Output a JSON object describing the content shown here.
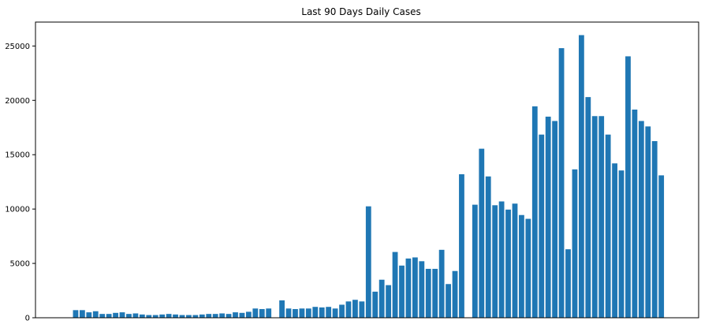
{
  "chart_data": {
    "type": "bar",
    "title": "Last 90 Days Daily Cases",
    "xlabel": "",
    "ylabel": "",
    "ylim": [
      0,
      27200
    ],
    "yticks": [
      0,
      5000,
      10000,
      15000,
      20000,
      25000
    ],
    "grid": false,
    "legend": false,
    "color": "#1f77b4",
    "values": [
      0,
      700,
      700,
      500,
      600,
      350,
      350,
      450,
      500,
      350,
      400,
      300,
      250,
      250,
      300,
      350,
      300,
      250,
      250,
      250,
      300,
      350,
      350,
      400,
      350,
      500,
      450,
      550,
      850,
      800,
      850,
      0,
      1600,
      850,
      800,
      850,
      850,
      1000,
      950,
      1000,
      850,
      1200,
      1500,
      1650,
      1500,
      10250,
      2400,
      3500,
      3000,
      6050,
      4800,
      5450,
      5550,
      5200,
      4500,
      4500,
      6250,
      3100,
      4300,
      13200,
      0,
      10400,
      15550,
      13000,
      10350,
      10700,
      9950,
      10500,
      9450,
      9100,
      19450,
      16850,
      18500,
      18100,
      24800,
      6300,
      13650,
      26000,
      20300,
      18550,
      18550,
      16850,
      14200,
      13550,
      24050,
      19150,
      18100,
      17600,
      16250,
      13100
    ]
  }
}
